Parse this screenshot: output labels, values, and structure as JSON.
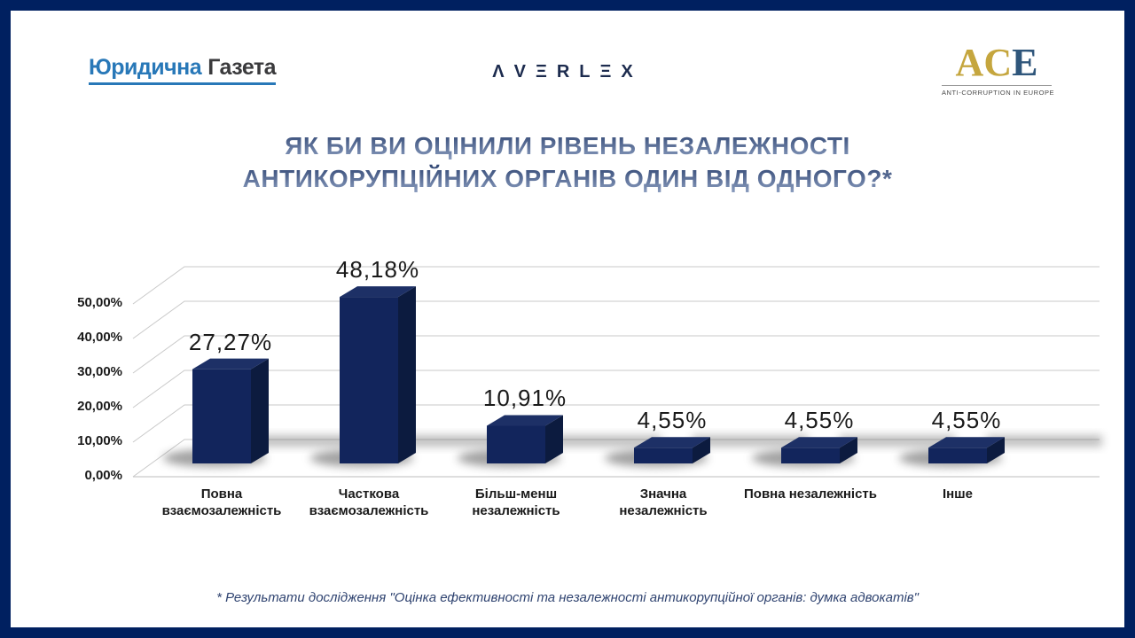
{
  "slide": {
    "border_color": "#002060",
    "background_color": "#ffffff"
  },
  "header": {
    "logo_left": {
      "part1": "Юридична",
      "part2": "Газета",
      "part1_color": "#2878B8",
      "part2_color": "#3A3A3C",
      "underline_color": "#2878B8"
    },
    "logo_center": {
      "text": "ΛVΞRLΞX",
      "color": "#1C2B4E"
    },
    "logo_right": {
      "letter1": "A",
      "letter2": "C",
      "letter3": "E",
      "gold_color": "#C5A63E",
      "blue_color": "#2F567B",
      "subtitle": "ANTI-CORRUPTION IN EUROPE"
    }
  },
  "title": {
    "line1": "ЯК БИ ВИ ОЦІНИЛИ РІВЕНЬ НЕЗАЛЕЖНОСТІ",
    "line2": "АНТИКОРУПЦІЙНИХ ОРГАНІВ ОДИН ВІД ОДНОГО?*",
    "gradient_top": "#273D6B",
    "gradient_bottom": "#93A5C6"
  },
  "chart_data": {
    "type": "bar",
    "style": "3d-perspective",
    "title": "ЯК БИ ВИ ОЦІНИЛИ РІВЕНЬ НЕЗАЛЕЖНОСТІ АНТИКОРУПЦІЙНИХ ОРГАНІВ ОДИН ВІД ОДНОГО?*",
    "categories": [
      "Повна взаємозалежність",
      "Часткова взаємозалежність",
      "Більш-менш незалежність",
      "Значна незалежність",
      "Повна незалежність",
      "Інше"
    ],
    "values": [
      27.27,
      48.18,
      10.91,
      4.55,
      4.55,
      4.55
    ],
    "labels": [
      "27,27%",
      "48,18%",
      "10,91%",
      "4,55%",
      "4,55%",
      "4,55%"
    ],
    "y_ticks": [
      "0,00%",
      "10,00%",
      "20,00%",
      "30,00%",
      "40,00%",
      "50,00%"
    ],
    "ylim": [
      0,
      50
    ],
    "xlabel": "",
    "ylabel": "",
    "legend": "none",
    "grid": "on",
    "gridline_color": "#c9c9c9",
    "bar_color_front": "#12255C",
    "bar_color_side": "#0C1B3F",
    "bar_color_top": "#1D3066",
    "shadow_color": "#6e6e6e"
  },
  "footnote": {
    "text": "* Результати дослідження \"Оцінка ефективності та незалежності антикорупційної органів: думка адвокатів\""
  }
}
